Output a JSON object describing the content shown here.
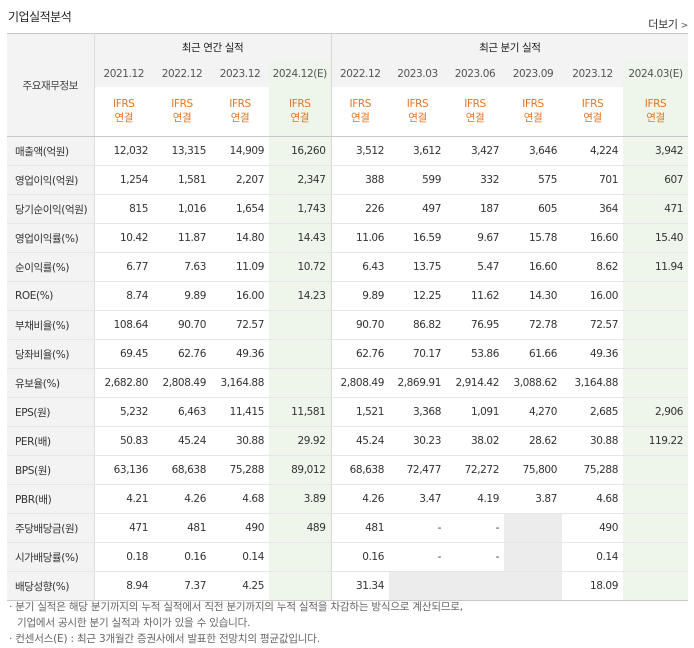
{
  "header": {
    "title": "기업실적분석",
    "more_label": "더보기",
    "more_icon": "chevron-right-icon"
  },
  "table": {
    "row_header_label": "주요재무정보",
    "groups": {
      "annual": "최근 연간 실적",
      "quarterly": "최근 분기 실적"
    },
    "columns": [
      "2021.12",
      "2022.12",
      "2023.12",
      "2024.12(E)",
      "2022.12",
      "2023.03",
      "2023.06",
      "2023.09",
      "2023.12",
      "2024.03(E)"
    ],
    "ifrs": {
      "line1": "IFRS",
      "line2": "연결"
    },
    "rows": [
      {
        "label": "매출액(억원)",
        "values": [
          "12,032",
          "13,315",
          "14,909",
          "16,260",
          "3,512",
          "3,612",
          "3,427",
          "3,646",
          "4,224",
          "3,942"
        ]
      },
      {
        "label": "영업이익(억원)",
        "values": [
          "1,254",
          "1,581",
          "2,207",
          "2,347",
          "388",
          "599",
          "332",
          "575",
          "701",
          "607"
        ]
      },
      {
        "label": "당기순이익(억원)",
        "values": [
          "815",
          "1,016",
          "1,654",
          "1,743",
          "226",
          "497",
          "187",
          "605",
          "364",
          "471"
        ]
      },
      {
        "label": "영업이익률(%)",
        "values": [
          "10.42",
          "11.87",
          "14.80",
          "14.43",
          "11.06",
          "16.59",
          "9.67",
          "15.78",
          "16.60",
          "15.40"
        ]
      },
      {
        "label": "순이익률(%)",
        "values": [
          "6.77",
          "7.63",
          "11.09",
          "10.72",
          "6.43",
          "13.75",
          "5.47",
          "16.60",
          "8.62",
          "11.94"
        ]
      },
      {
        "label": "ROE(%)",
        "values": [
          "8.74",
          "9.89",
          "16.00",
          "14.23",
          "9.89",
          "12.25",
          "11.62",
          "14.30",
          "16.00",
          ""
        ]
      },
      {
        "label": "부채비율(%)",
        "values": [
          "108.64",
          "90.70",
          "72.57",
          "",
          "90.70",
          "86.82",
          "76.95",
          "72.78",
          "72.57",
          ""
        ]
      },
      {
        "label": "당좌비율(%)",
        "values": [
          "69.45",
          "62.76",
          "49.36",
          "",
          "62.76",
          "70.17",
          "53.86",
          "61.66",
          "49.36",
          ""
        ]
      },
      {
        "label": "유보율(%)",
        "values": [
          "2,682.80",
          "2,808.49",
          "3,164.88",
          "",
          "2,808.49",
          "2,869.91",
          "2,914.42",
          "3,088.62",
          "3,164.88",
          ""
        ]
      },
      {
        "label": "EPS(원)",
        "values": [
          "5,232",
          "6,463",
          "11,415",
          "11,581",
          "1,521",
          "3,368",
          "1,091",
          "4,270",
          "2,685",
          "2,906"
        ]
      },
      {
        "label": "PER(배)",
        "values": [
          "50.83",
          "45.24",
          "30.88",
          "29.92",
          "45.24",
          "30.23",
          "38.02",
          "28.62",
          "30.88",
          "119.22"
        ]
      },
      {
        "label": "BPS(원)",
        "values": [
          "63,136",
          "68,638",
          "75,288",
          "89,012",
          "68,638",
          "72,477",
          "72,272",
          "75,800",
          "75,288",
          ""
        ]
      },
      {
        "label": "PBR(배)",
        "values": [
          "4.21",
          "4.26",
          "4.68",
          "3.89",
          "4.26",
          "3.47",
          "4.19",
          "3.87",
          "4.68",
          ""
        ]
      },
      {
        "label": "주당배당금(원)",
        "values": [
          "471",
          "481",
          "490",
          "489",
          "481",
          "-",
          "-",
          "",
          "490",
          ""
        ]
      },
      {
        "label": "시가배당률(%)",
        "values": [
          "0.18",
          "0.16",
          "0.14",
          "",
          "0.16",
          "-",
          "-",
          "",
          "0.14",
          ""
        ]
      },
      {
        "label": "배당성향(%)",
        "values": [
          "8.94",
          "7.37",
          "4.25",
          "",
          "31.34",
          "",
          "",
          "",
          "18.09",
          ""
        ]
      }
    ]
  },
  "notes": {
    "line1": "· 분기 실적은 해당 분기까지의 누적 실적에서 직전 분기까지의 누적 실적을 차감하는 방식으로 계산되므로,",
    "line2": "기업에서 공시한 분기 실적과 차이가 있을 수 있습니다.",
    "line3": "· 컨센서스(E) : 최근 3개월간 증권사에서 발표한 전망치의 평균값입니다."
  }
}
